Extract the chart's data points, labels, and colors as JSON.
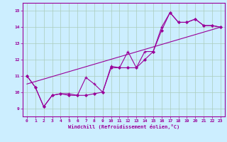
{
  "title": "",
  "xlabel": "Windchill (Refroidissement éolien,°C)",
  "bg_color": "#cceeff",
  "line_color": "#990099",
  "xlim": [
    -0.5,
    23.5
  ],
  "ylim": [
    8.5,
    15.5
  ],
  "xticks": [
    0,
    1,
    2,
    3,
    4,
    5,
    6,
    7,
    8,
    9,
    10,
    11,
    12,
    13,
    14,
    15,
    16,
    17,
    18,
    19,
    20,
    21,
    22,
    23
  ],
  "yticks": [
    9,
    10,
    11,
    12,
    13,
    14,
    15
  ],
  "grid_color": "#aaccbb",
  "zigzag_x": [
    0,
    1,
    2,
    3,
    4,
    5,
    6,
    7,
    8,
    9,
    10,
    11,
    12,
    13,
    14,
    15,
    16,
    17,
    18,
    19,
    20,
    21,
    22,
    23
  ],
  "zigzag_y": [
    11.0,
    10.3,
    9.1,
    9.8,
    9.9,
    9.9,
    9.8,
    10.9,
    10.5,
    10.0,
    11.6,
    11.5,
    12.5,
    11.5,
    12.5,
    12.5,
    14.0,
    14.9,
    14.3,
    14.3,
    14.5,
    14.1,
    14.1,
    14.0
  ],
  "trend_x": [
    0,
    23
  ],
  "trend_y": [
    10.5,
    14.0
  ],
  "smooth_x": [
    0,
    1,
    2,
    3,
    4,
    5,
    6,
    7,
    8,
    9,
    10,
    11,
    12,
    13,
    14,
    15,
    16,
    17,
    18,
    19,
    20,
    21,
    22,
    23
  ],
  "smooth_y": [
    11.0,
    10.3,
    9.1,
    9.8,
    9.9,
    9.8,
    9.8,
    9.8,
    9.9,
    10.0,
    11.5,
    11.5,
    11.5,
    11.5,
    12.0,
    12.5,
    13.8,
    14.9,
    14.3,
    14.3,
    14.5,
    14.1,
    14.1,
    14.0
  ]
}
